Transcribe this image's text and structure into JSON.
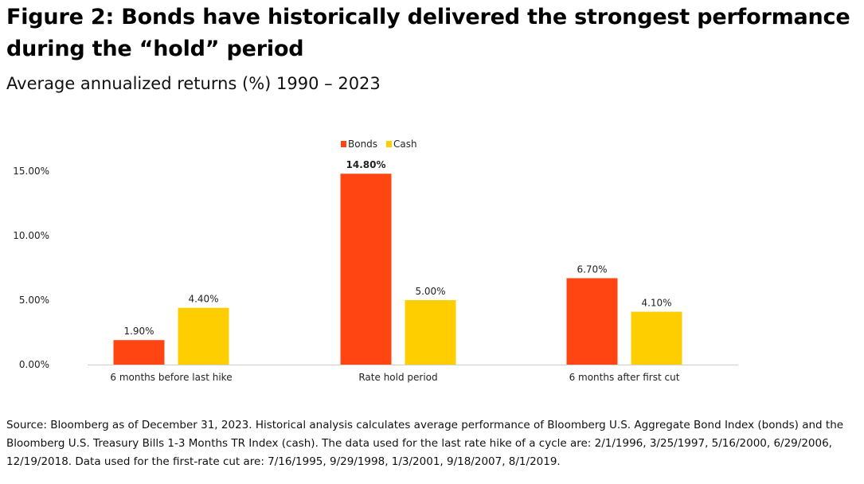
{
  "title": "Figure 2: Bonds have historically delivered the strongest performance during the “hold” period",
  "subtitle": "Average annualized returns (%) 1990 – 2023",
  "source": "Source: Bloomberg as of December 31, 2023. Historical analysis calculates average performance of Bloomberg U.S. Aggregate Bond Index (bonds) and the Bloomberg U.S. Treasury Bills 1-3 Months TR Index (cash). The data used for the last rate hike of a cycle are: 2/1/1996, 3/25/1997, 5/16/2000, 6/29/2006, 12/19/2018. Data used for the first-rate cut are: 7/16/1995, 9/29/1998, 1/3/2001, 9/18/2007, 8/1/2019.",
  "chart_data": {
    "type": "bar",
    "categories": [
      "6 months before last hike",
      "Rate hold period",
      "6 months after first cut"
    ],
    "series": [
      {
        "name": "Bonds",
        "color": "#ff4612",
        "values": [
          1.9,
          14.8,
          6.7
        ],
        "labels": [
          "1.90%",
          "14.80%",
          "6.70%"
        ],
        "bold": [
          false,
          true,
          false
        ]
      },
      {
        "name": "Cash",
        "color": "#ffce00",
        "values": [
          4.4,
          5.0,
          4.1
        ],
        "labels": [
          "4.40%",
          "5.00%",
          "4.10%"
        ],
        "bold": [
          false,
          false,
          false
        ]
      }
    ],
    "yticks": [
      0,
      5,
      10,
      15
    ],
    "ytick_labels": [
      "0.00%",
      "5.00%",
      "10.00%",
      "15.00%"
    ],
    "ylim": [
      0,
      15
    ],
    "grid": false,
    "legend": "top-center"
  }
}
